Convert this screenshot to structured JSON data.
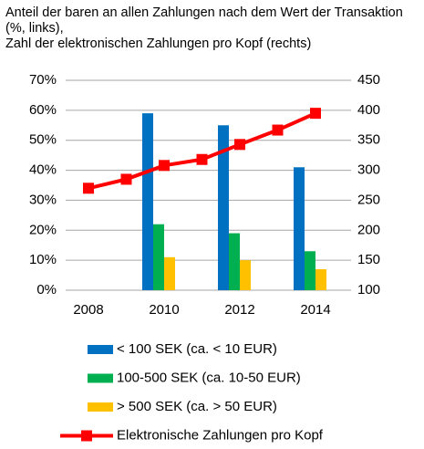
{
  "chart_data": {
    "type": "bar-line",
    "title": "Anteil der baren an allen Zahlungen nach dem Wert der Transaktion (%, links),",
    "subtitle": "Zahl der elektronischen Zahlungen pro Kopf (rechts)",
    "categories": [
      "2008",
      null,
      "2010",
      null,
      "2012",
      null,
      "2014"
    ],
    "series": [
      {
        "name": "< 100 SEK (ca. < 10 EUR)",
        "color": "#0070c0",
        "type": "bar",
        "values": [
          null,
          null,
          59,
          null,
          55,
          null,
          41
        ]
      },
      {
        "name": "100-500 SEK (ca. 10-50 EUR)",
        "color": "#00b050",
        "type": "bar",
        "values": [
          null,
          null,
          22,
          null,
          19,
          null,
          13
        ]
      },
      {
        "name": "> 500 SEK (ca. > 50 EUR)",
        "color": "#ffc000",
        "type": "bar",
        "values": [
          null,
          null,
          11,
          null,
          10,
          null,
          7
        ]
      },
      {
        "name": "Elektronische Zahlungen pro Kopf",
        "color": "#ff0000",
        "type": "line",
        "axis": "y2",
        "values": [
          270,
          285,
          308,
          318,
          343,
          367,
          395
        ]
      }
    ],
    "ylim": [
      0,
      70
    ],
    "yticks": [
      {
        "value": 0,
        "label": "0%"
      },
      {
        "value": 10,
        "label": "10%"
      },
      {
        "value": 20,
        "label": "20%"
      },
      {
        "value": 30,
        "label": "30%"
      },
      {
        "value": 40,
        "label": "40%"
      },
      {
        "value": 50,
        "label": "50%"
      },
      {
        "value": 60,
        "label": "60%"
      },
      {
        "value": 70,
        "label": "70%"
      }
    ],
    "y2lim": [
      100,
      450
    ],
    "y2ticks": [
      100,
      150,
      200,
      250,
      300,
      350,
      400,
      450
    ],
    "grid": true,
    "legend": "bottom"
  }
}
